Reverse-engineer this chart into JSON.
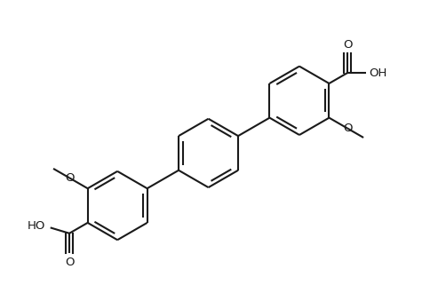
{
  "bg_color": "#ffffff",
  "line_color": "#1a1a1a",
  "lw": 1.5,
  "r": 0.52,
  "ao": 30,
  "ring_sep_x": 1.78,
  "ring_sep_y": 0.92,
  "blen": 0.32,
  "fs_label": 9.5,
  "xlim": [
    -3.0,
    3.2
  ],
  "ylim": [
    -2.1,
    2.3
  ],
  "figsize": [
    4.84,
    3.3
  ],
  "dpi": 100
}
